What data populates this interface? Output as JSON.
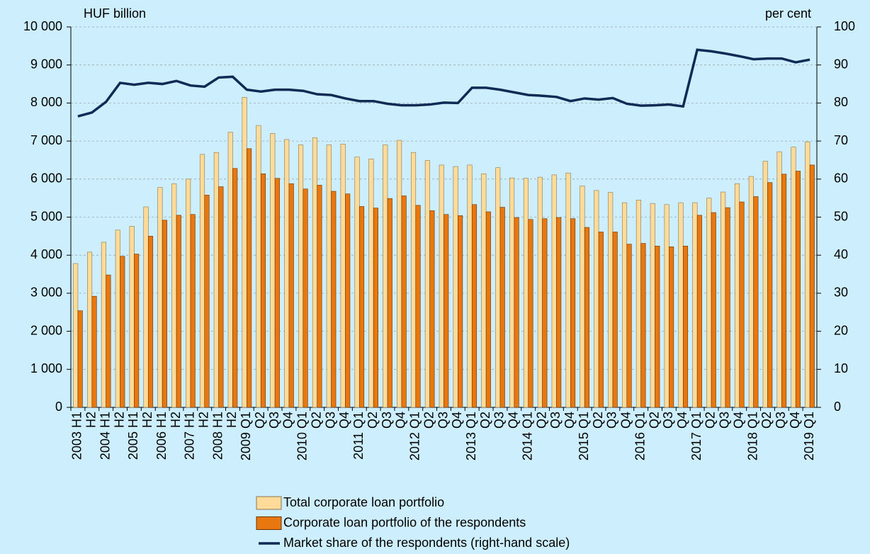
{
  "chart_data": {
    "type": "bar",
    "y_label": "HUF billion",
    "y2_label": "per cent",
    "categories": [
      "2003 H1",
      "H2",
      "2004 H1",
      "H2",
      "2005 H1",
      "H2",
      "2006 H1",
      "H2",
      "2007 H1",
      "H2",
      "2008 H1",
      "H2",
      "2009 Q1",
      "Q2",
      "Q3",
      "Q4",
      "2010 Q1",
      "Q2",
      "Q3",
      "Q4",
      "2011 Q1",
      "Q2",
      "Q3",
      "Q4",
      "2012 Q1",
      "Q2",
      "Q3",
      "Q4",
      "2013 Q1",
      "Q2",
      "Q3",
      "Q4",
      "2014 Q1",
      "Q2",
      "Q3",
      "Q4",
      "2015 Q1",
      "Q2",
      "Q3",
      "Q4",
      "2016 Q1",
      "Q2",
      "Q3",
      "Q4",
      "2017 Q1",
      "Q2",
      "Q3",
      "Q4",
      "2018 Q1",
      "Q2",
      "Q3",
      "Q4",
      "2019 Q1"
    ],
    "series": [
      {
        "name": "Total corporate loan portfolio",
        "type": "bar",
        "color": "#ffdb99",
        "values": [
          3780,
          4080,
          4340,
          4660,
          4760,
          5270,
          5780,
          5880,
          6000,
          6650,
          6700,
          7230,
          8150,
          7410,
          7200,
          7040,
          6900,
          7090,
          6900,
          6920,
          6580,
          6530,
          6900,
          7020,
          6700,
          6490,
          6370,
          6330,
          6370,
          6140,
          6300,
          6030,
          6020,
          6050,
          6110,
          6160,
          5820,
          5700,
          5650,
          5380,
          5450,
          5360,
          5330,
          5380,
          5380,
          5500,
          5660,
          5880,
          6070,
          6470,
          6720,
          6840,
          6980
        ]
      },
      {
        "name": "Corporate loan portfolio of the respondents",
        "type": "bar",
        "color": "#e8770f",
        "values": [
          2540,
          2920,
          3480,
          3970,
          4030,
          4500,
          4920,
          5050,
          5070,
          5580,
          5800,
          6280,
          6800,
          6140,
          6020,
          5880,
          5740,
          5840,
          5680,
          5610,
          5280,
          5240,
          5490,
          5560,
          5310,
          5170,
          5070,
          5040,
          5330,
          5140,
          5260,
          4990,
          4940,
          4960,
          4990,
          4960,
          4730,
          4610,
          4610,
          4290,
          4310,
          4240,
          4220,
          4240,
          5050,
          5120,
          5250,
          5400,
          5540,
          5910,
          6130,
          6210,
          6370
        ]
      },
      {
        "name": "Market share of the respondents (right-hand scale)",
        "type": "line",
        "axis": "y2",
        "color": "#0e2a55",
        "values": [
          76.5,
          77.5,
          80.3,
          85.3,
          84.8,
          85.3,
          85.0,
          85.8,
          84.6,
          84.3,
          86.7,
          86.9,
          83.5,
          83.0,
          83.5,
          83.5,
          83.2,
          82.3,
          82.1,
          81.2,
          80.5,
          80.5,
          79.8,
          79.4,
          79.4,
          79.6,
          80.1,
          80.0,
          84.0,
          84.0,
          83.5,
          82.8,
          82.1,
          81.9,
          81.6,
          80.5,
          81.2,
          80.9,
          81.3,
          79.8,
          79.3,
          79.4,
          79.6,
          79.1,
          94.0,
          93.6,
          93.0,
          92.3,
          91.5,
          91.7,
          91.7,
          90.7,
          91.4
        ]
      }
    ],
    "ylim": [
      0,
      10000
    ],
    "yticks": [
      0,
      {
        "value": 1000,
        "label": "1 000"
      },
      {
        "value": 2000,
        "label": "2 000"
      },
      {
        "value": 3000,
        "label": "3 000"
      },
      {
        "value": 4000,
        "label": "4 000"
      },
      {
        "value": 5000,
        "label": "5 000"
      },
      {
        "value": 6000,
        "label": "6 000"
      },
      {
        "value": 7000,
        "label": "7 000"
      },
      {
        "value": 8000,
        "label": "8 000"
      },
      {
        "value": 9000,
        "label": "9 000"
      },
      {
        "value": 10000,
        "label": "10 000"
      }
    ],
    "y2lim": [
      0,
      100
    ],
    "y2ticks": [
      0,
      10,
      20,
      30,
      40,
      50,
      60,
      70,
      80,
      90,
      100
    ],
    "grid": true
  }
}
